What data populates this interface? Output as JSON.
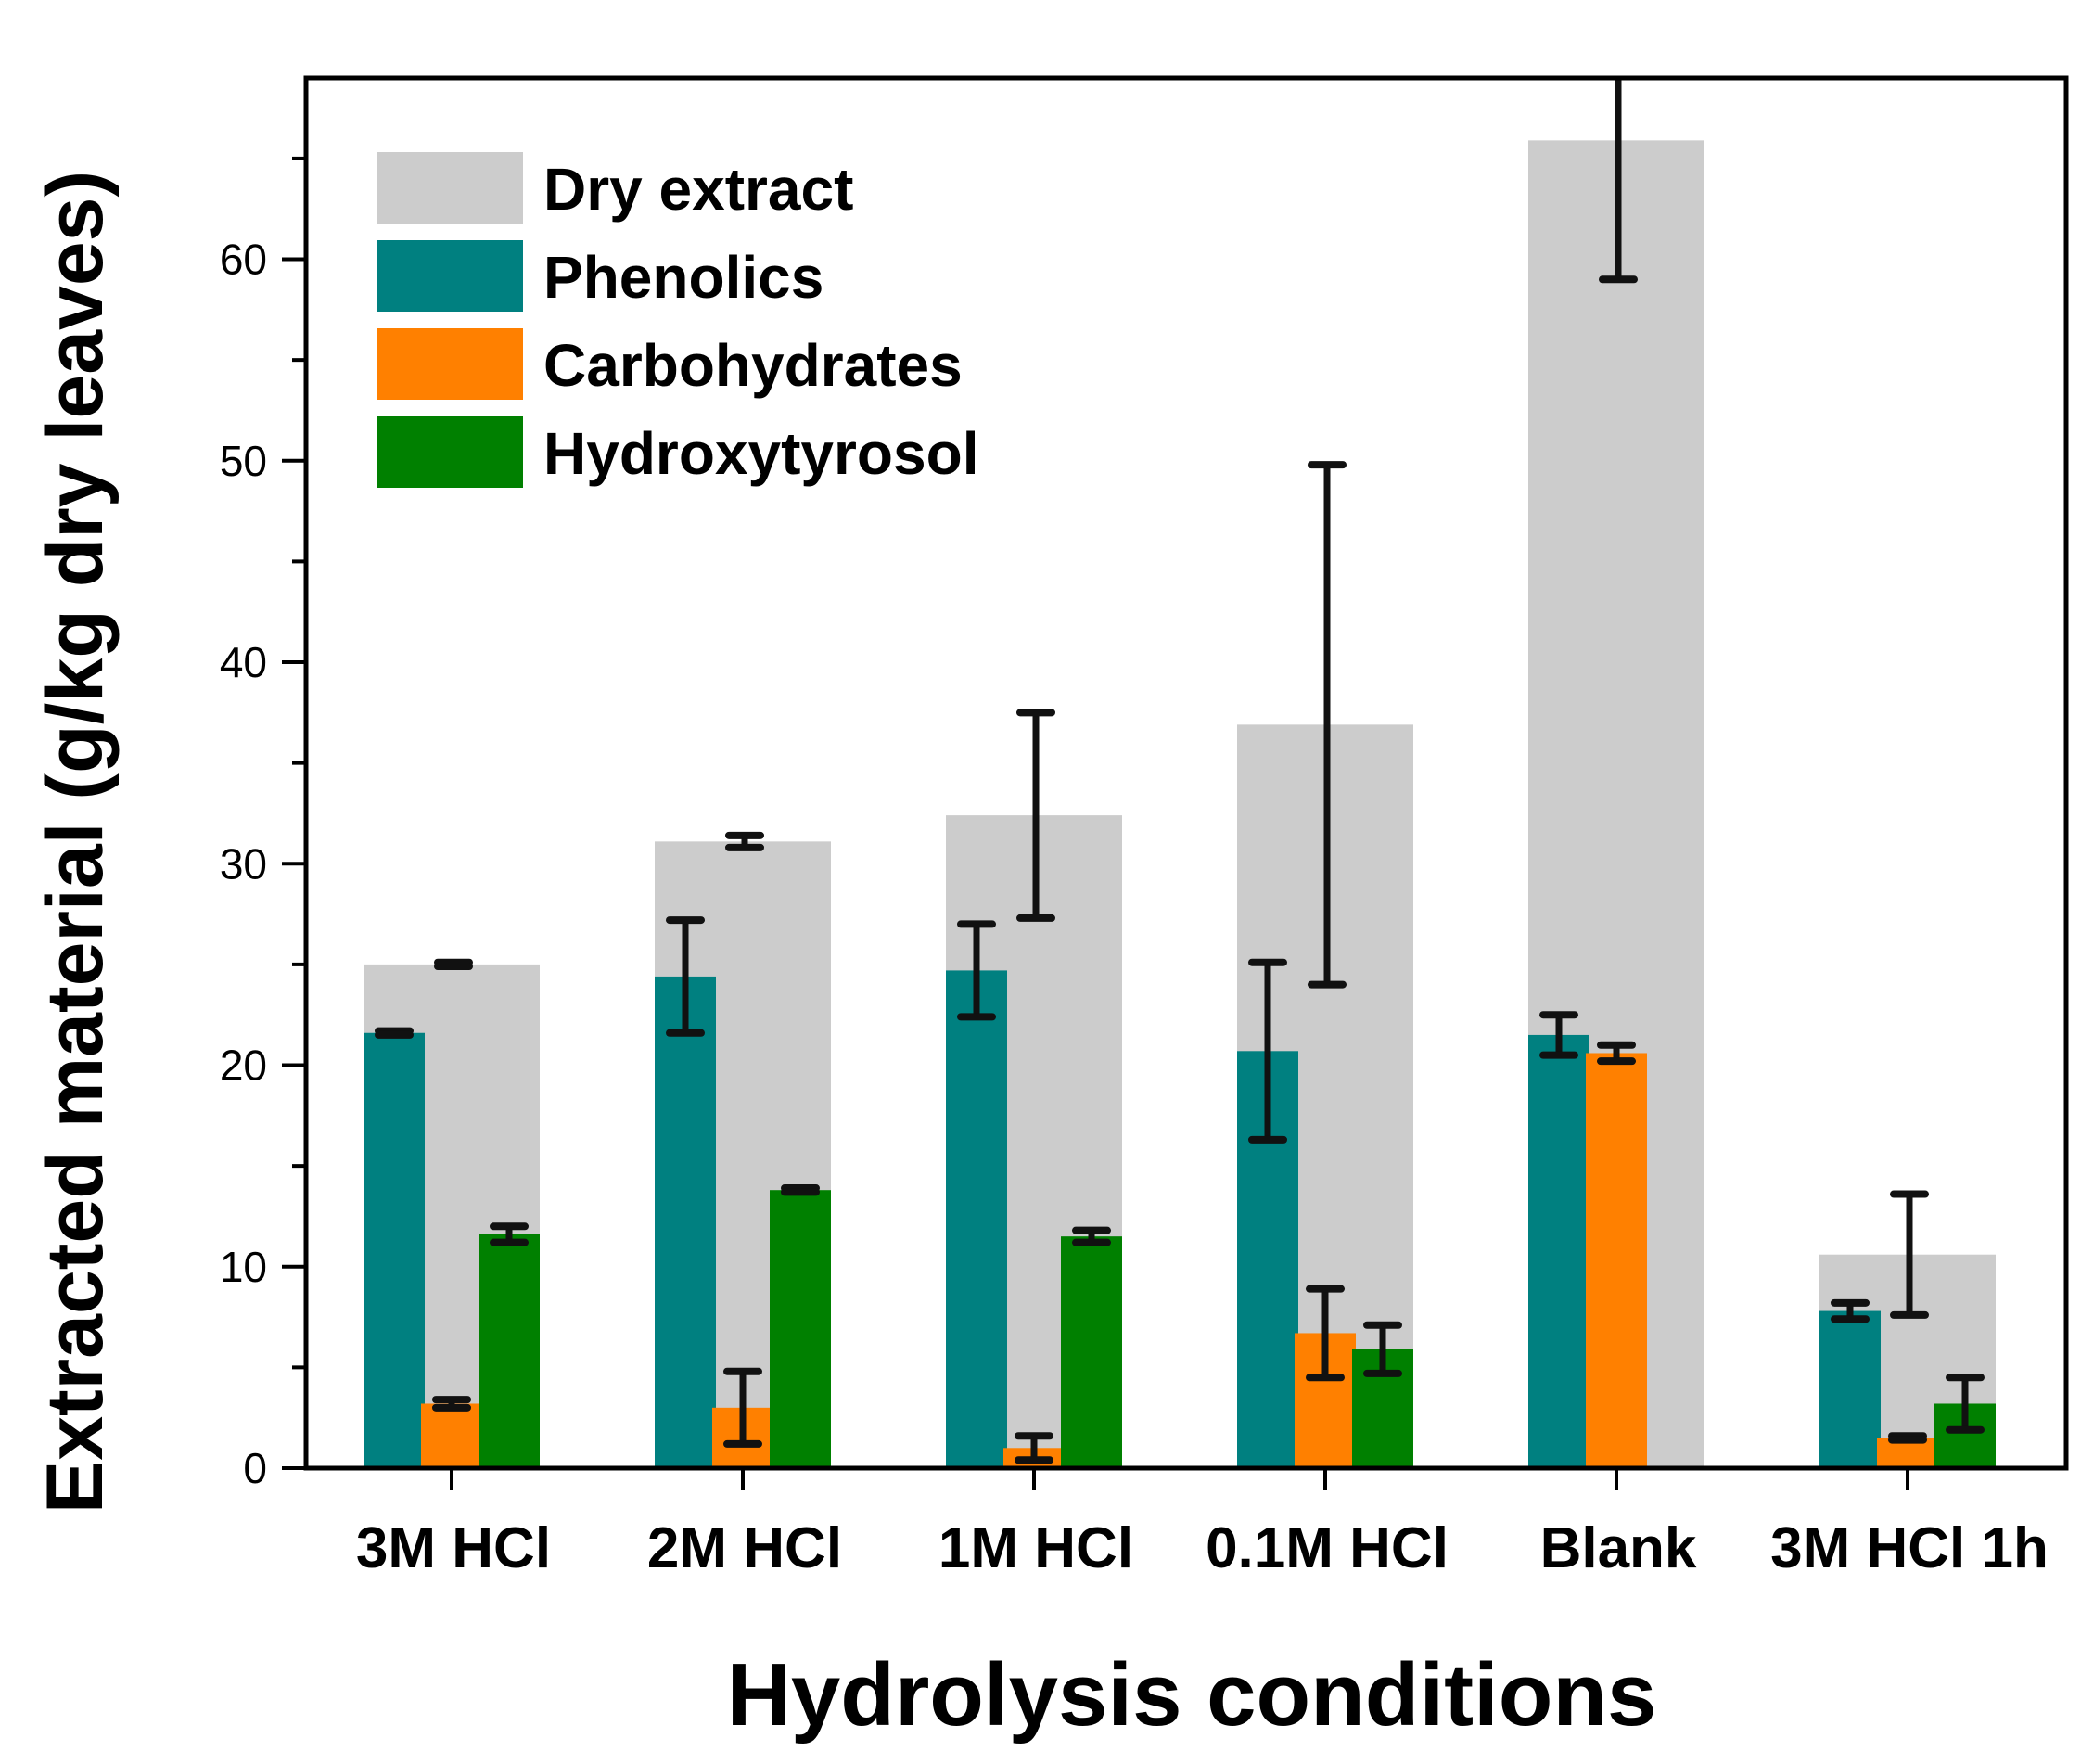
{
  "chart_data": {
    "type": "bar",
    "xlabel": "Hydrolysis conditions",
    "ylabel": "Extracted material (g/kg dry leaves)",
    "ylim": [
      0,
      69
    ],
    "yticks": [
      0,
      10,
      20,
      30,
      40,
      50,
      60
    ],
    "categories": [
      "3M HCl",
      "2M HCl",
      "1M HCl",
      "0.1M HCl",
      "Blank",
      "3M HCl 1h"
    ],
    "legend_position": "top-left",
    "series": [
      {
        "name": "Dry extract",
        "color": "#cccccc",
        "values": [
          25.0,
          31.1,
          32.4,
          36.9,
          65.9,
          10.6
        ],
        "errors": [
          0.1,
          0.3,
          5.1,
          12.9,
          6.9,
          3.0
        ]
      },
      {
        "name": "Phenolics",
        "color": "#008080",
        "values": [
          21.6,
          24.4,
          24.7,
          20.7,
          21.5,
          7.8
        ],
        "errors": [
          0.1,
          2.8,
          2.3,
          4.4,
          1.0,
          0.4
        ]
      },
      {
        "name": "Carbohydrates",
        "color": "#ff8000",
        "values": [
          3.2,
          3.0,
          1.0,
          6.7,
          20.6,
          1.5
        ],
        "errors": [
          0.2,
          1.8,
          0.6,
          2.2,
          0.4,
          0.1
        ]
      },
      {
        "name": "Hydroxytyrosol",
        "color": "#008000",
        "values": [
          11.6,
          13.8,
          11.5,
          5.9,
          null,
          3.2
        ],
        "errors": [
          0.4,
          0.1,
          0.3,
          1.2,
          null,
          1.3
        ]
      }
    ]
  }
}
